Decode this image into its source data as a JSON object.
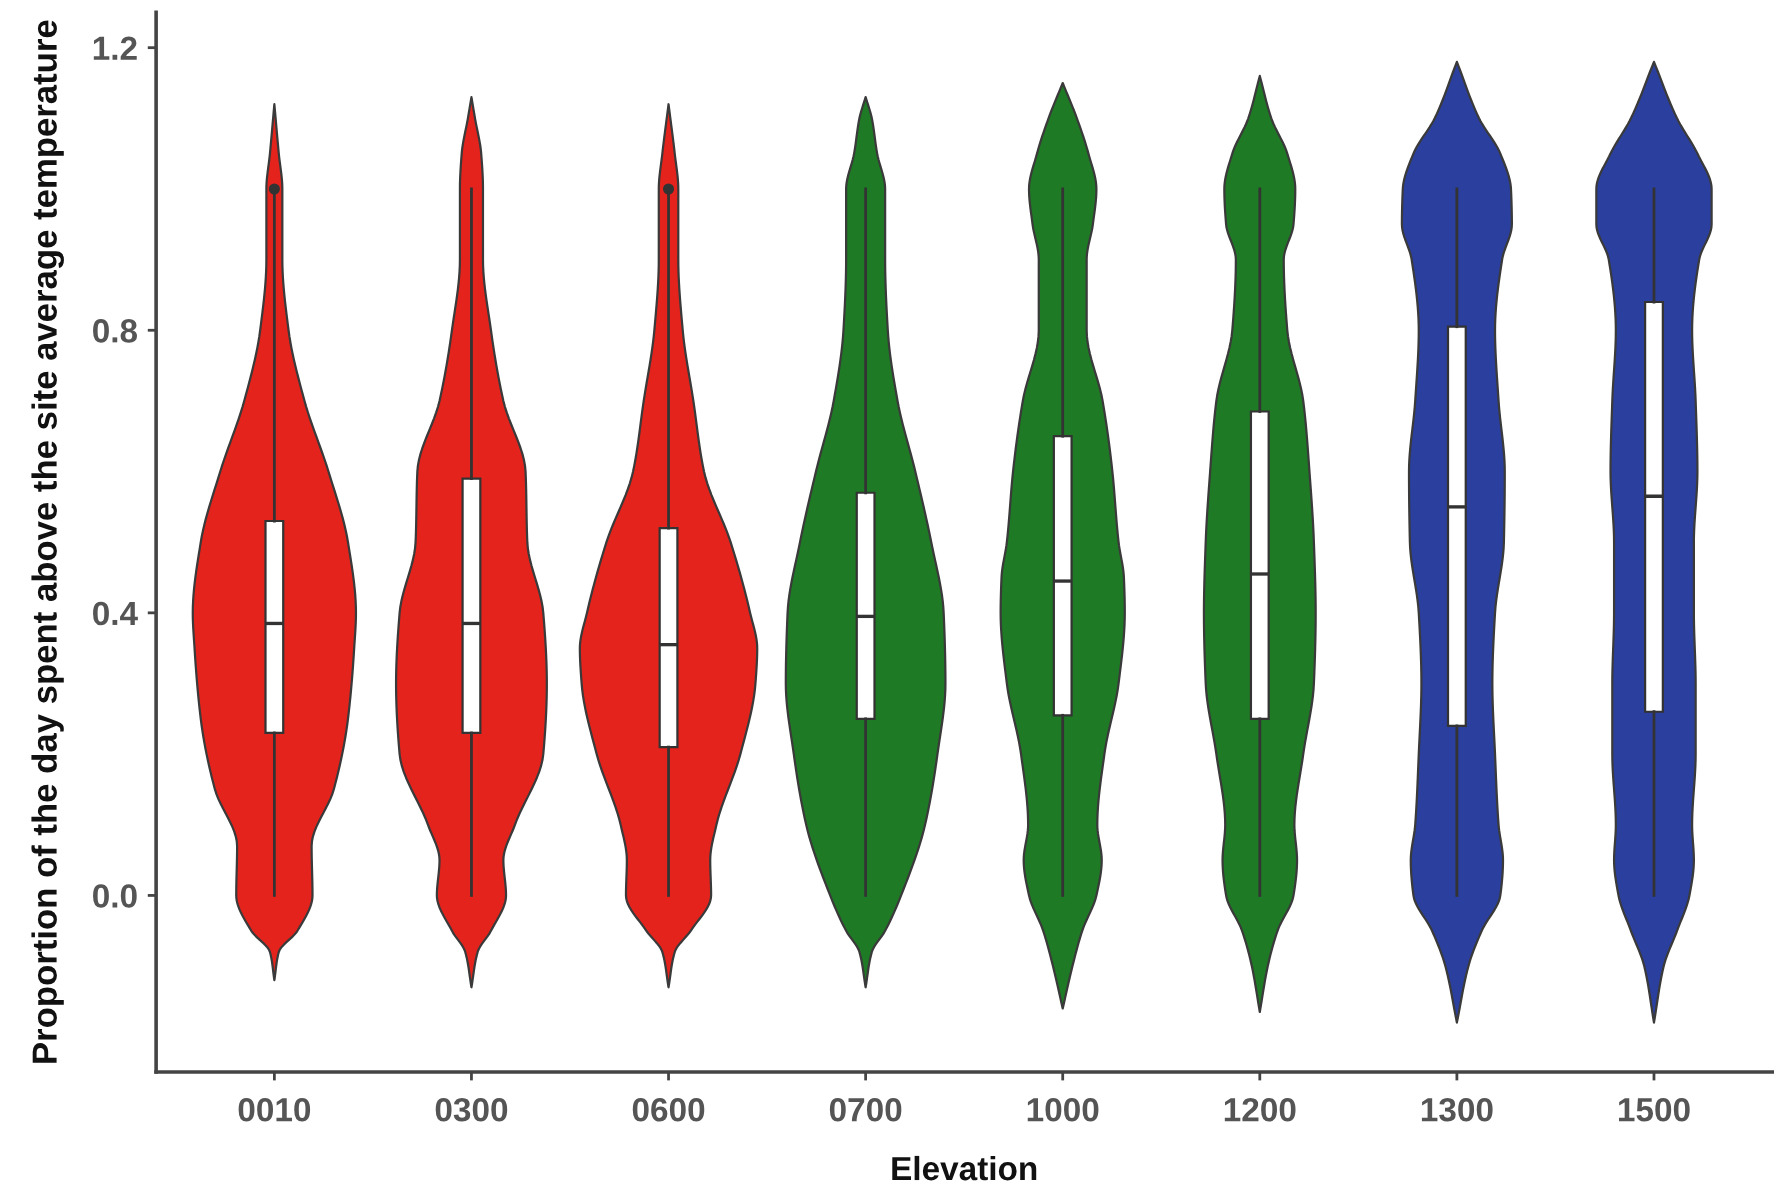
{
  "chart_data": {
    "type": "box",
    "xlabel": "Elevation",
    "ylabel": "Proportion of the day spent above the site average temperature",
    "categories": [
      "0010",
      "0300",
      "0600",
      "0700",
      "1000",
      "1200",
      "1300",
      "1500"
    ],
    "ylim": [
      -0.25,
      1.25
    ],
    "yticks": [
      {
        "value": 0,
        "label": "0.0"
      },
      0.4,
      0.8,
      1.2
    ],
    "boxes": [
      {
        "low": 0,
        "q1": 0.23,
        "median": 0.385,
        "q3": 0.53,
        "high": 1.0,
        "outliers": [
          1.0
        ]
      },
      {
        "low": 0,
        "q1": 0.23,
        "median": 0.385,
        "q3": 0.59,
        "high": 1.0
      },
      {
        "low": 0,
        "q1": 0.21,
        "median": 0.355,
        "q3": 0.52,
        "high": 1.0,
        "outliers": [
          1.0
        ]
      },
      {
        "low": 0,
        "q1": 0.25,
        "median": 0.395,
        "q3": 0.57,
        "high": 1.0
      },
      {
        "low": 0,
        "q1": 0.255,
        "median": 0.445,
        "q3": 0.65,
        "high": 1.0
      },
      {
        "low": 0,
        "q1": 0.25,
        "median": 0.455,
        "q3": 0.685,
        "high": 1.0
      },
      {
        "low": 0,
        "q1": 0.24,
        "median": 0.55,
        "q3": 0.805,
        "high": 1.0
      },
      {
        "low": 0,
        "q1": 0.26,
        "median": 0.565,
        "q3": 0.84,
        "high": 1.0
      }
    ]
  }
}
